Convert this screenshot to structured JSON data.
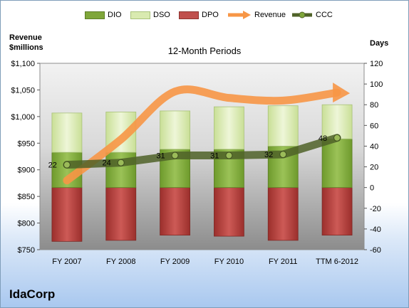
{
  "chart_data": {
    "type": "bar",
    "title": "12-Month Periods",
    "categories": [
      "FY 2007",
      "FY 2008",
      "FY 2009",
      "FY 2010",
      "FY 2011",
      "TTM 6-2012"
    ],
    "left_axis": {
      "label_line1": "Revenue",
      "label_line2": "$millions",
      "range": [
        750,
        1100
      ],
      "ticks": [
        750,
        800,
        850,
        900,
        950,
        1000,
        1050,
        1100
      ],
      "tick_labels": [
        "$750",
        "$800",
        "$850",
        "$900",
        "$950",
        "$1,000",
        "$1,050",
        "$1,100"
      ]
    },
    "right_axis": {
      "label": "Days",
      "range": [
        -60,
        120
      ],
      "ticks": [
        -60,
        -40,
        -20,
        0,
        20,
        40,
        60,
        80,
        100,
        120
      ],
      "tick_labels": [
        "-60",
        "-40",
        "-20",
        "0",
        "20",
        "40",
        "60",
        "80",
        "100",
        "120"
      ]
    },
    "series": [
      {
        "name": "DIO",
        "type": "stacked-bar",
        "axis": "right",
        "values": [
          34,
          34,
          37,
          37,
          40,
          47
        ],
        "color": "#7fa63a"
      },
      {
        "name": "DSO",
        "type": "stacked-bar",
        "axis": "right",
        "values": [
          38,
          39,
          37,
          41,
          39,
          33
        ],
        "color": "#d9eab0"
      },
      {
        "name": "DPO",
        "type": "negative-bar",
        "axis": "right",
        "values": [
          -52,
          -51,
          -46,
          -47,
          -51,
          -46
        ],
        "color": "#c0504d"
      },
      {
        "name": "Revenue",
        "type": "arrow-line",
        "axis": "left",
        "values": [
          880,
          957,
          1047,
          1035,
          1030,
          1045
        ],
        "color": "#f79646"
      },
      {
        "name": "CCC",
        "type": "line",
        "axis": "right",
        "values": [
          22,
          24,
          31,
          31,
          32,
          48
        ],
        "color": "#4f6228"
      }
    ],
    "ccc_labels": [
      "22",
      "24",
      "31",
      "31",
      "32",
      "48"
    ],
    "grid": false,
    "legend_position": "top"
  },
  "company": "IdaCorp"
}
